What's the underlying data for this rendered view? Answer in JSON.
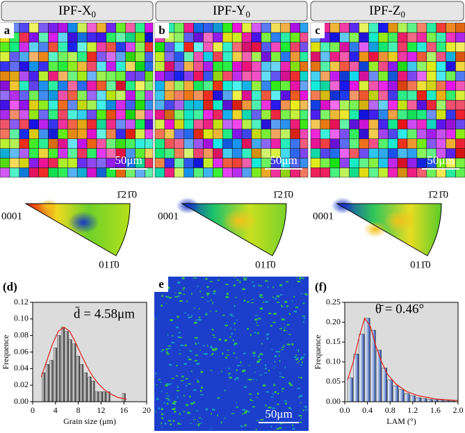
{
  "headers": [
    {
      "label": "IPF-X",
      "subscript": "0"
    },
    {
      "label": "IPF-Y",
      "subscript": "0"
    },
    {
      "label": "IPF-Z",
      "subscript": "0"
    }
  ],
  "maps": [
    {
      "panel": "a",
      "scale_bar": "50μm"
    },
    {
      "panel": "b",
      "scale_bar": "50μm"
    },
    {
      "panel": "c",
      "scale_bar": "50μm"
    }
  ],
  "pole_figure_labels": {
    "top": "1̄21̄0",
    "left": "0001",
    "bottom": "011̄0"
  },
  "kam_map": {
    "panel": "e",
    "scale_bar": "50μm"
  },
  "chart_data": [
    {
      "type": "bar",
      "panel": "(d)",
      "annotation": "d̄ = 4.58μm",
      "x_label": "Grain size (μm)",
      "y_label": "Frequence",
      "x": [
        1.9,
        2.6,
        3.3,
        4.0,
        4.6,
        5.3,
        6.0,
        6.6,
        7.3,
        8.0,
        8.6,
        9.3,
        10.0,
        10.6,
        11.3,
        12.0,
        12.6,
        13.3,
        16.0
      ],
      "values": [
        0.035,
        0.045,
        0.05,
        0.065,
        0.08,
        0.09,
        0.085,
        0.075,
        0.07,
        0.055,
        0.045,
        0.035,
        0.03,
        0.025,
        0.012,
        0.012,
        0.012,
        0.012,
        0.01
      ],
      "fit": {
        "color": "#e0201b",
        "x": [
          1.5,
          2.5,
          3.5,
          4.5,
          5.5,
          6.5,
          7.5,
          8.5,
          9.5,
          10.5,
          11.5,
          12.5,
          13.5,
          15,
          16.5
        ],
        "y": [
          0.03,
          0.05,
          0.07,
          0.085,
          0.09,
          0.085,
          0.072,
          0.057,
          0.043,
          0.031,
          0.022,
          0.015,
          0.01,
          0.005,
          0.003
        ]
      },
      "color": "gray",
      "xlim": [
        0,
        20
      ],
      "xticks": [
        0,
        4,
        8,
        12,
        16,
        20
      ],
      "ylim": [
        0,
        0.12
      ],
      "yticks": [
        {
          "value": 0,
          "label": "0.00"
        },
        0.02,
        0.04,
        0.06,
        0.08,
        {
          "value": 0.1,
          "label": "0.10"
        },
        0.12
      ]
    },
    {
      "type": "bar",
      "panel": "(f)",
      "annotation": "θ̄ = 0.46°",
      "x_label": "LAM (°)",
      "y_label": "Frequence",
      "x": [
        0.1,
        0.2,
        0.3,
        0.4,
        0.5,
        0.6,
        0.7,
        0.8,
        0.9,
        1.0,
        1.1,
        1.2,
        1.3,
        1.4,
        1.5,
        1.6,
        1.7,
        1.8,
        1.9
      ],
      "values": [
        0.06,
        0.12,
        0.17,
        0.21,
        0.18,
        0.13,
        0.085,
        0.055,
        0.04,
        0.03,
        0.02,
        0.015,
        0.01,
        0.008,
        0.006,
        0.005,
        0.004,
        0.003,
        0.002
      ],
      "fit": {
        "color": "#e0201b",
        "x": [
          0.05,
          0.15,
          0.25,
          0.35,
          0.45,
          0.55,
          0.65,
          0.75,
          0.9,
          1.1,
          1.3,
          1.6,
          2.0
        ],
        "y": [
          0.055,
          0.1,
          0.16,
          0.21,
          0.19,
          0.14,
          0.1,
          0.07,
          0.045,
          0.025,
          0.015,
          0.007,
          0.003
        ]
      },
      "color": "blue",
      "xlim": [
        0,
        2
      ],
      "xticks": [
        {
          "value": 0,
          "label": "0.0"
        },
        0.4,
        0.8,
        1.2,
        1.6,
        {
          "value": 2,
          "label": "2.0"
        }
      ],
      "ylim": [
        0,
        0.25
      ],
      "yticks": [
        {
          "value": 0,
          "label": "0.00"
        },
        0.05,
        {
          "value": 0.1,
          "label": "0.10"
        },
        0.15,
        {
          "value": 0.2,
          "label": "0.20"
        },
        0.25
      ]
    }
  ]
}
